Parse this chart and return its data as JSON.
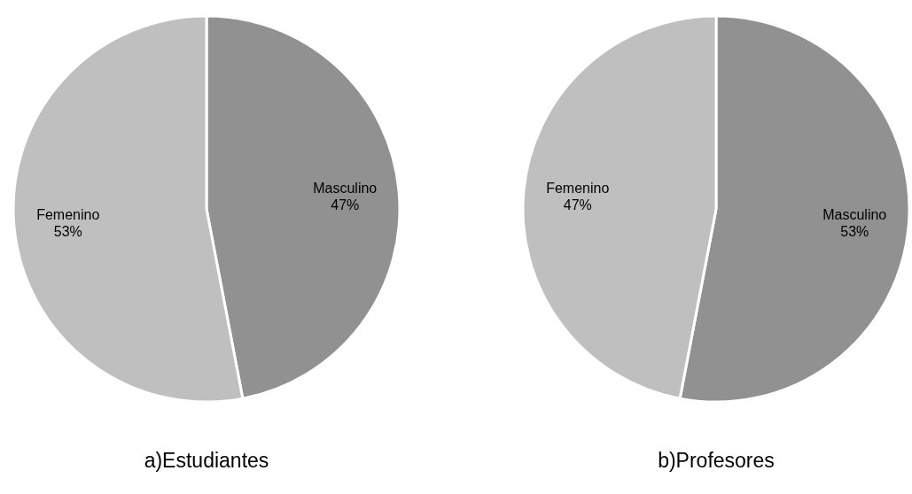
{
  "chart_data": [
    {
      "type": "pie",
      "title": "a)Estudiantes",
      "categories": [
        "Masculino",
        "Femenino"
      ],
      "values": [
        47,
        53
      ],
      "value_labels": [
        "47%",
        "53%"
      ],
      "colors": [
        "#919191",
        "#bfbfbf"
      ]
    },
    {
      "type": "pie",
      "title": "b)Profesores",
      "categories": [
        "Masculino",
        "Femenino"
      ],
      "values": [
        53,
        47
      ],
      "value_labels": [
        "53%",
        "47%"
      ],
      "colors": [
        "#919191",
        "#bfbfbf"
      ]
    }
  ]
}
